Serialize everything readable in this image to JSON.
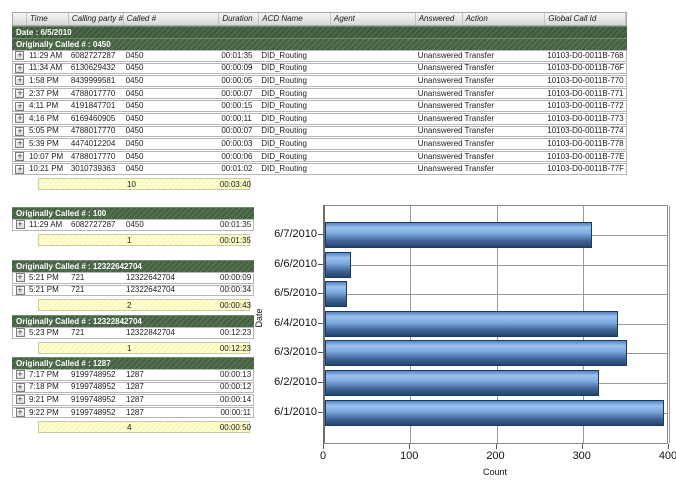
{
  "table": {
    "columns": [
      "",
      "Time",
      "Calling party #",
      "Called #",
      "Duration",
      "ACD Name",
      "Agent",
      "Answered",
      "Action",
      "Global Call Id"
    ],
    "date_label": "Date : 6/5/2010",
    "group_label": "Originally Called # : 0450",
    "rows": [
      {
        "time": "11:29 AM",
        "calling_party": "6082727287",
        "called": "0450",
        "duration": "00:01:35",
        "acd_name": "DID_Routing",
        "agent": "",
        "answered": "Unanswered",
        "action": "Transfer",
        "global_call_id": "10103-D0-0011B-768"
      },
      {
        "time": "11:34 AM",
        "calling_party": "6130629432",
        "called": "0450",
        "duration": "00:00:09",
        "acd_name": "DID_Routing",
        "agent": "",
        "answered": "Unanswered",
        "action": "Transfer",
        "global_call_id": "10103-D0-0011B-76F"
      },
      {
        "time": "1:58 PM",
        "calling_party": "8439999581",
        "called": "0450",
        "duration": "00:00:05",
        "acd_name": "DID_Routing",
        "agent": "",
        "answered": "Unanswered",
        "action": "Transfer",
        "global_call_id": "10103-D0-0011B-770"
      },
      {
        "time": "2:37 PM",
        "calling_party": "4788017770",
        "called": "0450",
        "duration": "00:00:07",
        "acd_name": "DID_Routing",
        "agent": "",
        "answered": "Unanswered",
        "action": "Transfer",
        "global_call_id": "10103-D0-0011B-771"
      },
      {
        "time": "4:11 PM",
        "calling_party": "4191847701",
        "called": "0450",
        "duration": "00:00:15",
        "acd_name": "DID_Routing",
        "agent": "",
        "answered": "Unanswered",
        "action": "Transfer",
        "global_call_id": "10103-D0-0011B-772"
      },
      {
        "time": "4:16 PM",
        "calling_party": "6169460905",
        "called": "0450",
        "duration": "00:00:11",
        "acd_name": "DID_Routing",
        "agent": "",
        "answered": "Unanswered",
        "action": "Transfer",
        "global_call_id": "10103-D0-0011B-773"
      },
      {
        "time": "5:05 PM",
        "calling_party": "4788017770",
        "called": "0450",
        "duration": "00:00:07",
        "acd_name": "DID_Routing",
        "agent": "",
        "answered": "Unanswered",
        "action": "Transfer",
        "global_call_id": "10103-D0-0011B-774"
      },
      {
        "time": "5:39 PM",
        "calling_party": "4474012204",
        "called": "0450",
        "duration": "00:00:03",
        "acd_name": "DID_Routing",
        "agent": "",
        "answered": "Unanswered",
        "action": "Transfer",
        "global_call_id": "10103-D0-0011B-778"
      },
      {
        "time": "10:07 PM",
        "calling_party": "4788017770",
        "called": "0450",
        "duration": "00:00:06",
        "acd_name": "DID_Routing",
        "agent": "",
        "answered": "Unanswered",
        "action": "Transfer",
        "global_call_id": "10103-D0-0011B-77E"
      },
      {
        "time": "10:21 PM",
        "calling_party": "3010739363",
        "called": "0450",
        "duration": "00:01:02",
        "acd_name": "DID_Routing",
        "agent": "",
        "answered": "Unanswered",
        "action": "Transfer",
        "global_call_id": "10103-D0-0011B-77F"
      }
    ],
    "summary": {
      "count": "10",
      "total_duration": "00:03:40"
    }
  },
  "groups": [
    {
      "label": "Originally Called # : 100",
      "rows": [
        {
          "time": "11:29 AM",
          "calling_party": "6082727287",
          "called": "0450",
          "duration": "00:01:35"
        }
      ],
      "summary": {
        "count": "1",
        "total_duration": "00:01:35"
      }
    },
    {
      "label": "Originally Called # : 12322642704",
      "rows": [
        {
          "time": "5:21 PM",
          "calling_party": "721",
          "called": "12322642704",
          "duration": "00:00:09"
        },
        {
          "time": "5:21 PM",
          "calling_party": "721",
          "called": "12322642704",
          "duration": "00:00:34"
        }
      ],
      "summary": {
        "count": "2",
        "total_duration": "00:00:43"
      }
    },
    {
      "label": "Originally Called # : 12322842704",
      "rows": [
        {
          "time": "5:23 PM",
          "calling_party": "721",
          "called": "12322842704",
          "duration": "00:12:23"
        }
      ],
      "summary": {
        "count": "1",
        "total_duration": "00:12:23"
      }
    },
    {
      "label": "Originally Called # : 1287",
      "rows": [
        {
          "time": "7:17 PM",
          "calling_party": "9199748952",
          "called": "1287",
          "duration": "00:00:13"
        },
        {
          "time": "7:18 PM",
          "calling_party": "9199748952",
          "called": "1287",
          "duration": "00:00:12"
        },
        {
          "time": "9:21 PM",
          "calling_party": "9199748952",
          "called": "1287",
          "duration": "00:00:14"
        },
        {
          "time": "9:22 PM",
          "calling_party": "9199748952",
          "called": "1287",
          "duration": "00:00:11"
        }
      ],
      "summary": {
        "count": "4",
        "total_duration": "00:00:50"
      }
    }
  ],
  "chart_data": {
    "type": "bar",
    "orientation": "horizontal",
    "categories": [
      "6/7/2010",
      "6/6/2010",
      "6/5/2010",
      "6/4/2010",
      "6/3/2010",
      "6/2/2010",
      "6/1/2010"
    ],
    "values": [
      310,
      30,
      25,
      340,
      350,
      318,
      393
    ],
    "title": "",
    "xlabel": "Count",
    "ylabel": "Date",
    "xlim": [
      0,
      400
    ],
    "xticks": [
      0,
      100,
      200,
      300,
      400
    ],
    "grid": true,
    "legend": "none"
  },
  "icons": {
    "expand": "+"
  },
  "colors": {
    "group_header_green": "#4c6849",
    "summary_yellow": "#ffffcc",
    "bar_blue_light": "#9dc2ee",
    "bar_blue_dark": "#23456e",
    "grid_gray": "#9a9a9a"
  }
}
